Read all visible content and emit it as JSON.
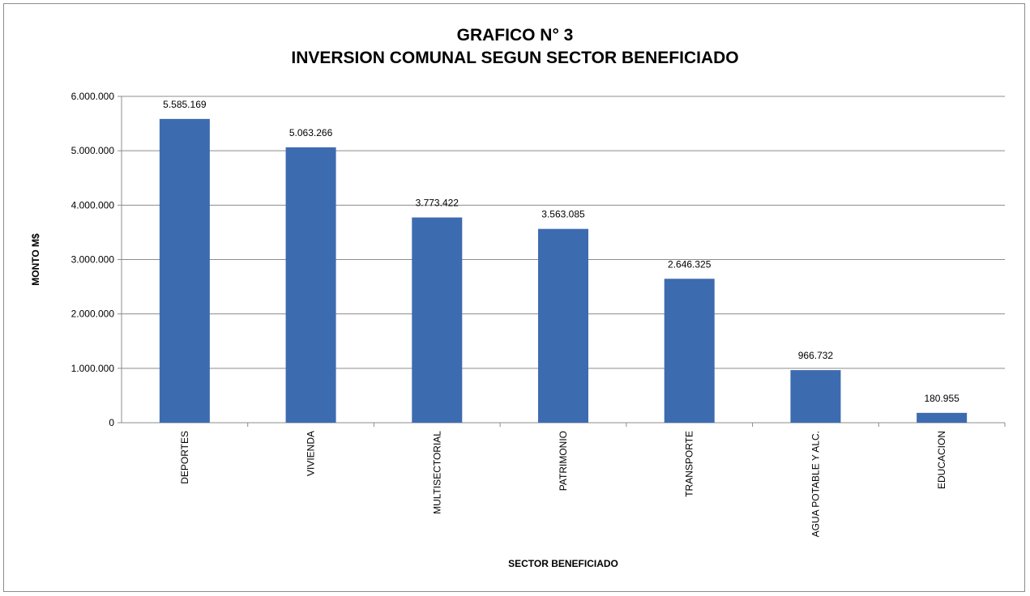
{
  "chart_data": {
    "type": "bar",
    "title_line1": "GRAFICO N° 3",
    "title_line2": "INVERSION COMUNAL SEGUN SECTOR BENEFICIADO",
    "xlabel": "SECTOR BENEFICIADO",
    "ylabel": "MONTO M$",
    "ylim": [
      0,
      6000000
    ],
    "yticks": [
      0,
      1000000,
      2000000,
      3000000,
      4000000,
      5000000,
      6000000
    ],
    "ytick_labels": [
      "0",
      "1.000.000",
      "2.000.000",
      "3.000.000",
      "4.000.000",
      "5.000.000",
      "6.000.000"
    ],
    "categories": [
      "DEPORTES",
      "VIVIENDA",
      "MULTISECTORIAL",
      "PATRIMONIO",
      "TRANSPORTE",
      "AGUA POTABLE Y ALC.",
      "EDUCACION"
    ],
    "values": [
      5585169,
      5063266,
      3773422,
      3563085,
      2646325,
      966732,
      180955
    ],
    "value_labels": [
      "5.585.169",
      "5.063.266",
      "3.773.422",
      "3.563.085",
      "2.646.325",
      "966.732",
      "180.955"
    ],
    "grid": true,
    "bar_color": "#3d6bb0",
    "grid_color": "#8c8c8c"
  }
}
